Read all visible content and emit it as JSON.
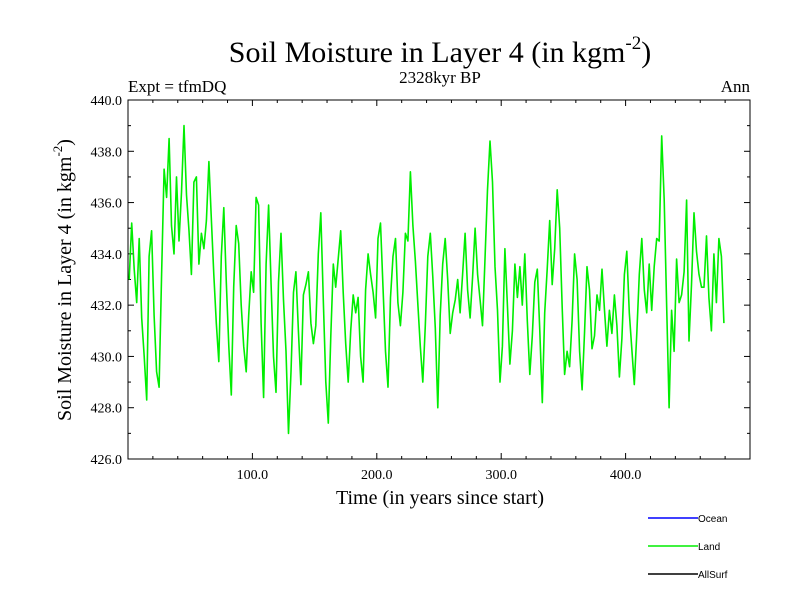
{
  "chart_data": {
    "type": "line",
    "title": "Soil Moisture in Layer 4 (in kgm",
    "title_sup": "-2",
    "title_close": ")",
    "subtitle": "2328kyr BP",
    "expt_label": "Expt = tfmDQ",
    "period_label": "Ann",
    "xlabel": "Time (in years since start)",
    "ylabel": "Soil Moisture in Layer 4 (in kgm",
    "ylabel_sup": "-2",
    "ylabel_close": ")",
    "xlim": [
      0,
      500
    ],
    "ylim": [
      426,
      440
    ],
    "x_ticks": [
      {
        "value": 100,
        "label": "100.0"
      },
      {
        "value": 200,
        "label": "200.0"
      },
      {
        "value": 300,
        "label": "300.0"
      },
      {
        "value": 400,
        "label": "400.0"
      }
    ],
    "y_ticks": [
      {
        "value": 426,
        "label": "426.0"
      },
      {
        "value": 428,
        "label": "428.0"
      },
      {
        "value": 430,
        "label": "430.0"
      },
      {
        "value": 432,
        "label": "432.0"
      },
      {
        "value": 434,
        "label": "434.0"
      },
      {
        "value": 436,
        "label": "436.0"
      },
      {
        "value": 438,
        "label": "438.0"
      },
      {
        "value": 440,
        "label": "440.0"
      }
    ],
    "legend": [
      {
        "name": "Ocean",
        "color": "#0000ff"
      },
      {
        "name": "Land",
        "color": "#00ee00"
      },
      {
        "name": "AllSurf",
        "color": "#000000"
      }
    ],
    "series": [
      {
        "name": "Land",
        "color": "#00ee00",
        "x_start": 1,
        "x_step": 2,
        "values": [
          433.0,
          435.2,
          433.4,
          432.1,
          434.6,
          431.5,
          430.0,
          428.3,
          433.9,
          434.9,
          431.6,
          429.4,
          428.8,
          433.2,
          437.3,
          436.2,
          438.5,
          435.1,
          434.0,
          437.0,
          434.5,
          436.4,
          439.0,
          436.3,
          434.9,
          433.2,
          436.8,
          437.0,
          433.6,
          434.8,
          434.2,
          435.3,
          437.6,
          435.4,
          433.2,
          431.3,
          429.8,
          433.9,
          435.8,
          432.9,
          430.4,
          428.5,
          432.7,
          435.1,
          434.4,
          432.0,
          430.4,
          429.4,
          431.6,
          433.3,
          432.5,
          436.2,
          435.9,
          431.3,
          428.4,
          433.6,
          435.9,
          432.8,
          430.0,
          428.6,
          432.9,
          434.8,
          432.2,
          430.2,
          427.0,
          429.4,
          432.5,
          433.3,
          431.0,
          428.9,
          432.4,
          432.8,
          433.3,
          431.3,
          430.5,
          431.2,
          434.0,
          435.6,
          432.2,
          429.0,
          427.4,
          430.8,
          433.6,
          432.7,
          433.8,
          434.9,
          432.5,
          430.5,
          429.0,
          431.0,
          432.4,
          431.7,
          432.3,
          430.0,
          429.0,
          432.6,
          434.0,
          433.2,
          432.5,
          431.5,
          434.6,
          435.2,
          432.7,
          430.2,
          428.8,
          432.3,
          433.9,
          434.6,
          432.1,
          431.2,
          432.5,
          434.8,
          434.5,
          437.2,
          435.1,
          433.7,
          432.0,
          430.4,
          429.0,
          431.2,
          433.9,
          434.8,
          433.1,
          431.1,
          428.0,
          431.6,
          433.6,
          434.6,
          433.0,
          430.9,
          431.7,
          432.2,
          433.0,
          431.7,
          433.2,
          434.8,
          432.6,
          431.5,
          433.1,
          435.0,
          433.2,
          432.2,
          431.2,
          433.8,
          436.5,
          438.4,
          436.8,
          433.5,
          431.8,
          429.0,
          430.4,
          434.2,
          432.0,
          429.7,
          431.0,
          433.6,
          432.3,
          433.5,
          432.0,
          434.0,
          431.4,
          429.3,
          430.8,
          432.9,
          433.4,
          431.0,
          428.2,
          431.7,
          433.4,
          435.3,
          432.8,
          434.2,
          436.5,
          435.0,
          431.9,
          429.3,
          430.2,
          429.6,
          431.4,
          434.0,
          433.0,
          430.2,
          428.7,
          430.9,
          433.5,
          432.6,
          430.3,
          430.8,
          432.4,
          431.8,
          433.4,
          431.8,
          430.4,
          431.8,
          430.9,
          432.4,
          431.2,
          429.2,
          430.7,
          433.2,
          434.1,
          431.7,
          430.3,
          428.9,
          430.9,
          433.2,
          434.6,
          432.6,
          431.7,
          433.6,
          431.8,
          433.5,
          434.6,
          434.5,
          438.6,
          436.1,
          431.9,
          428.0,
          431.8,
          430.2,
          433.8,
          432.1,
          432.4,
          433.3,
          436.1,
          430.6,
          432.8,
          435.6,
          434.1,
          433.2,
          432.7,
          432.7,
          434.7,
          432.3,
          431.0,
          434.0,
          432.1,
          434.6,
          433.9,
          431.3
        ]
      }
    ]
  }
}
